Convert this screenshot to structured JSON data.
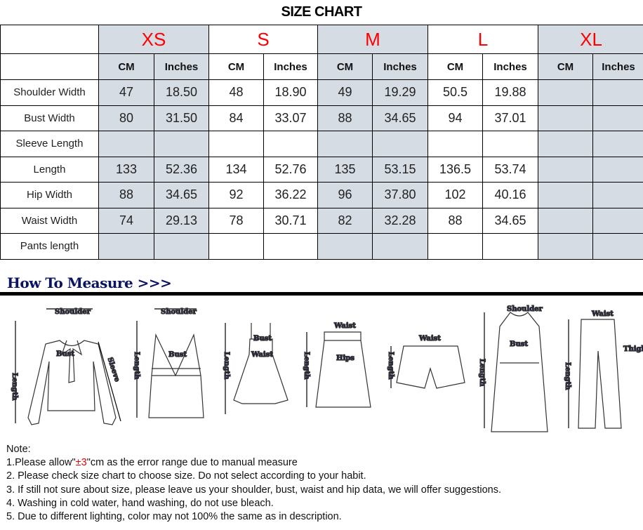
{
  "title": "SIZE CHART",
  "sizes": [
    "XS",
    "S",
    "M",
    "L",
    "XL"
  ],
  "units": [
    "CM",
    "Inches"
  ],
  "rows": [
    {
      "label": "Shoulder Width",
      "values": [
        "47",
        "18.50",
        "48",
        "18.90",
        "49",
        "19.29",
        "50.5",
        "19.88",
        "",
        ""
      ]
    },
    {
      "label": "Bust Width",
      "values": [
        "80",
        "31.50",
        "84",
        "33.07",
        "88",
        "34.65",
        "94",
        "37.01",
        "",
        ""
      ]
    },
    {
      "label": "Sleeve Length",
      "values": [
        "",
        "",
        "",
        "",
        "",
        "",
        "",
        "",
        "",
        ""
      ]
    },
    {
      "label": "Length",
      "values": [
        "133",
        "52.36",
        "134",
        "52.76",
        "135",
        "53.15",
        "136.5",
        "53.74",
        "",
        ""
      ]
    },
    {
      "label": "Hip Width",
      "values": [
        "88",
        "34.65",
        "92",
        "36.22",
        "96",
        "37.80",
        "102",
        "40.16",
        "",
        ""
      ]
    },
    {
      "label": "Waist Width",
      "values": [
        "74",
        "29.13",
        "78",
        "30.71",
        "82",
        "32.28",
        "88",
        "34.65",
        "",
        ""
      ]
    },
    {
      "label": "Pants length",
      "values": [
        "",
        "",
        "",
        "",
        "",
        "",
        "",
        "",
        "",
        ""
      ]
    }
  ],
  "colors": {
    "shade": "#d6dce4",
    "size_label": "#ff0000",
    "measure_label": "#0b1460"
  },
  "how_to_measure": {
    "heading": "How To Measure >>>",
    "labels": {
      "shoulder": "Shoulder",
      "bust": "Bust",
      "sleeve": "Sleeve",
      "length": "Length",
      "waist": "Waist",
      "hips": "Hips",
      "thigh": "Thigh"
    }
  },
  "notes": {
    "heading": "Note:",
    "n1_pre": "1.Please allow\"",
    "n1_red": "±3",
    "n1_post": "\"cm as the error range due to manual measure",
    "n2": "2. Please check size chart to choose size. Do not select according to your habit.",
    "n3": "3. If still not sure about size, please leave us your shoulder, bust, waist and hip data, we will offer suggestions.",
    "n4": "4. Washing in cold water, hand washing, do not use bleach.",
    "n5": "5. Due to different lighting, color may not 100% the same as in description."
  }
}
